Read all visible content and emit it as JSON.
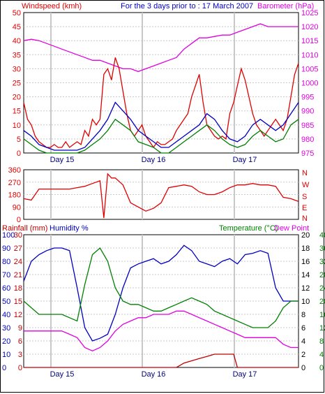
{
  "header": {
    "left_label": "Windspeed (kmh)",
    "center_label": "For the 3 days prior to : 17 March 2007",
    "right_label": "Barometer (hPa)"
  },
  "colors": {
    "red": "#e00000",
    "blue": "#0000c0",
    "green": "#008000",
    "magenta": "#e000e0",
    "dark_red": "#c00000",
    "grid": "#c8c8c8"
  },
  "chart_data": [
    {
      "type": "line",
      "panel": "wind-barometer",
      "x_labels": [
        "Day 15",
        "Day 16",
        "Day 17"
      ],
      "x_range": [
        0,
        72
      ],
      "y_left": {
        "label": "Windspeed (kmh)",
        "range": [
          0,
          50
        ],
        "ticks": [
          0,
          5,
          10,
          15,
          20,
          25,
          30,
          35,
          40,
          45,
          50
        ]
      },
      "y_right": {
        "label": "Barometer (hPa)",
        "range": [
          975,
          1025
        ],
        "ticks": [
          975,
          980,
          985,
          990,
          995,
          1000,
          1005,
          1010,
          1015,
          1020,
          1025
        ]
      },
      "grid": true,
      "series": [
        {
          "axis": "right",
          "color": "#e000e0",
          "x": [
            0,
            2,
            4,
            6,
            8,
            10,
            12,
            14,
            16,
            18,
            20,
            22,
            24,
            26,
            28,
            30,
            32,
            34,
            36,
            38,
            40,
            42,
            44,
            46,
            48,
            50,
            52,
            54,
            56,
            58,
            60,
            62,
            64,
            66,
            68,
            70,
            72
          ],
          "values": [
            1015,
            1015.5,
            1015,
            1014,
            1013,
            1012,
            1011,
            1010,
            1009,
            1008,
            1008,
            1007,
            1006,
            1005,
            1005,
            1004,
            1005,
            1006,
            1007,
            1008,
            1009,
            1012,
            1014,
            1016,
            1016,
            1016.5,
            1017,
            1017,
            1018,
            1019,
            1020,
            1021,
            1020,
            1020,
            1020,
            1020,
            1020
          ]
        },
        {
          "axis": "left",
          "color": "#e00000",
          "x": [
            0,
            1,
            2,
            3,
            4,
            5,
            6,
            7,
            8,
            9,
            10,
            11,
            12,
            13,
            14,
            15,
            16,
            17,
            18,
            19,
            20,
            21,
            22,
            23,
            24,
            25,
            26,
            27,
            28,
            29,
            30,
            31,
            32,
            33,
            34,
            35,
            36,
            37,
            38,
            39,
            40,
            41,
            42,
            43,
            44,
            45,
            46,
            47,
            48,
            49,
            50,
            51,
            52,
            53,
            54,
            55,
            56,
            57,
            58,
            59,
            60,
            61,
            62,
            63,
            64,
            65,
            66,
            67,
            68,
            69,
            70,
            71,
            72
          ],
          "values": [
            18,
            12,
            10,
            6,
            4,
            3,
            2,
            2,
            3,
            2,
            2,
            4,
            2,
            3,
            4,
            3,
            8,
            6,
            12,
            10,
            12,
            28,
            30,
            26,
            34,
            30,
            22,
            14,
            8,
            6,
            8,
            10,
            6,
            4,
            2,
            4,
            3,
            3,
            4,
            5,
            8,
            10,
            12,
            14,
            20,
            24,
            28,
            18,
            10,
            8,
            6,
            5,
            6,
            5,
            14,
            18,
            24,
            30,
            26,
            20,
            14,
            10,
            8,
            6,
            8,
            10,
            12,
            10,
            8,
            12,
            20,
            28,
            32
          ]
        },
        {
          "axis": "left",
          "color": "#0000c0",
          "x": [
            0,
            2,
            4,
            6,
            8,
            10,
            12,
            14,
            16,
            18,
            20,
            22,
            24,
            26,
            28,
            30,
            32,
            34,
            36,
            38,
            40,
            42,
            44,
            46,
            48,
            50,
            52,
            54,
            56,
            58,
            60,
            62,
            64,
            66,
            68,
            70,
            72
          ],
          "values": [
            8,
            6,
            3,
            2,
            1,
            1,
            1,
            1,
            2,
            5,
            8,
            12,
            18,
            15,
            12,
            8,
            6,
            4,
            2,
            2,
            4,
            6,
            8,
            10,
            14,
            12,
            8,
            5,
            4,
            6,
            10,
            12,
            10,
            8,
            10,
            14,
            18
          ]
        },
        {
          "axis": "left",
          "color": "#008000",
          "x": [
            0,
            2,
            4,
            6,
            8,
            10,
            12,
            14,
            16,
            18,
            20,
            22,
            24,
            26,
            28,
            30,
            32,
            34,
            36,
            38,
            40,
            42,
            44,
            46,
            48,
            50,
            52,
            54,
            56,
            58,
            60,
            62,
            64,
            66,
            68,
            70,
            72
          ],
          "values": [
            5,
            3,
            1,
            0,
            0,
            0,
            0,
            0,
            1,
            3,
            5,
            8,
            12,
            10,
            8,
            4,
            3,
            2,
            0,
            0,
            2,
            4,
            6,
            8,
            10,
            8,
            5,
            3,
            2,
            3,
            6,
            8,
            6,
            4,
            5,
            10,
            12
          ]
        }
      ]
    },
    {
      "type": "line",
      "panel": "wind-direction",
      "y_left": {
        "range": [
          0,
          360
        ],
        "ticks": [
          0,
          90,
          180,
          270,
          360
        ]
      },
      "y_right_labels": [
        "N",
        "W",
        "S",
        "E",
        "N"
      ],
      "series": [
        {
          "color": "#e00000",
          "x": [
            0,
            2,
            4,
            6,
            8,
            10,
            12,
            14,
            16,
            18,
            20,
            21,
            22,
            23,
            24,
            26,
            28,
            30,
            32,
            34,
            36,
            38,
            40,
            42,
            44,
            46,
            48,
            50,
            52,
            54,
            56,
            58,
            60,
            62,
            64,
            66,
            68,
            70,
            72
          ],
          "values": [
            150,
            140,
            220,
            220,
            220,
            220,
            220,
            230,
            240,
            260,
            280,
            10,
            330,
            300,
            300,
            250,
            120,
            90,
            60,
            80,
            120,
            230,
            240,
            250,
            240,
            200,
            180,
            180,
            200,
            230,
            250,
            250,
            260,
            250,
            250,
            240,
            160,
            150,
            130
          ]
        }
      ]
    },
    {
      "type": "line",
      "panel": "rain-humidity-temperature",
      "x_labels": [
        "Day 15",
        "Day 16",
        "Day 17"
      ],
      "y_left_outer": {
        "label": "Rainfall (mm)",
        "range": [
          0,
          100
        ],
        "ticks": [
          0,
          10,
          20,
          30,
          40,
          50,
          60,
          70,
          80,
          90,
          100
        ]
      },
      "y_left_inner": {
        "label": "Humidity %",
        "range": [
          0,
          30
        ],
        "ticks": [
          0,
          3,
          6,
          9,
          12,
          15,
          18,
          21,
          24,
          27,
          30
        ]
      },
      "y_right_outer": {
        "label": "Temperature (°C)",
        "range": [
          0,
          40
        ],
        "ticks": [
          0,
          4,
          8,
          12,
          16,
          20,
          24,
          28,
          32,
          36,
          40
        ]
      },
      "y_right_inner": {
        "label": "Dew Point",
        "range": [
          0,
          40
        ],
        "ticks": [
          0,
          2,
          4,
          6,
          8,
          10,
          12,
          14,
          16,
          18,
          20
        ]
      },
      "series": [
        {
          "name": "Humidity %",
          "color": "#0000c0",
          "x": [
            0,
            2,
            4,
            6,
            8,
            10,
            12,
            14,
            16,
            18,
            20,
            22,
            24,
            26,
            28,
            30,
            32,
            34,
            36,
            38,
            40,
            42,
            44,
            46,
            48,
            50,
            52,
            54,
            56,
            58,
            60,
            62,
            64,
            66,
            68,
            70,
            72
          ],
          "values": [
            65,
            80,
            85,
            88,
            90,
            90,
            88,
            60,
            30,
            20,
            22,
            25,
            40,
            60,
            75,
            78,
            80,
            82,
            78,
            80,
            85,
            92,
            88,
            80,
            78,
            76,
            80,
            82,
            78,
            85,
            86,
            88,
            86,
            60,
            50,
            50,
            50
          ]
        },
        {
          "name": "Temperature (°C)",
          "color": "#008000",
          "x": [
            0,
            2,
            4,
            6,
            8,
            10,
            12,
            14,
            16,
            18,
            20,
            22,
            24,
            26,
            28,
            30,
            32,
            34,
            36,
            38,
            40,
            42,
            44,
            46,
            48,
            50,
            52,
            54,
            56,
            58,
            60,
            62,
            64,
            66,
            68,
            70,
            72
          ],
          "values": [
            20,
            18,
            16,
            16,
            16,
            16,
            15,
            14,
            25,
            34,
            36,
            32,
            24,
            20,
            19,
            19,
            18,
            17,
            17,
            18,
            19,
            20,
            21,
            20,
            19,
            17,
            16,
            15,
            14,
            13,
            12,
            12,
            12,
            14,
            18,
            20,
            20
          ]
        },
        {
          "name": "Dew Point",
          "color": "#e000e0",
          "x": [
            0,
            2,
            4,
            6,
            8,
            10,
            12,
            14,
            16,
            18,
            20,
            22,
            24,
            26,
            28,
            30,
            32,
            34,
            36,
            38,
            40,
            42,
            44,
            46,
            48,
            50,
            52,
            54,
            56,
            58,
            60,
            62,
            64,
            66,
            68,
            70,
            72
          ],
          "values": [
            11,
            11,
            11,
            11,
            11,
            11,
            10,
            9,
            6,
            5,
            6,
            8,
            11,
            13,
            14,
            15,
            15,
            16,
            16,
            16,
            17,
            17,
            16,
            15,
            14,
            13,
            12,
            11,
            10,
            9,
            9,
            9,
            9,
            9,
            7,
            6,
            6
          ]
        },
        {
          "name": "Rainfall (mm)",
          "color": "#c00000",
          "x": [
            0,
            24,
            40,
            42,
            44,
            46,
            48,
            50,
            52,
            55,
            56,
            57,
            72
          ],
          "values": [
            0,
            0,
            0,
            1,
            1.5,
            2,
            2.5,
            3,
            3,
            3,
            0,
            0,
            0
          ]
        }
      ]
    }
  ]
}
